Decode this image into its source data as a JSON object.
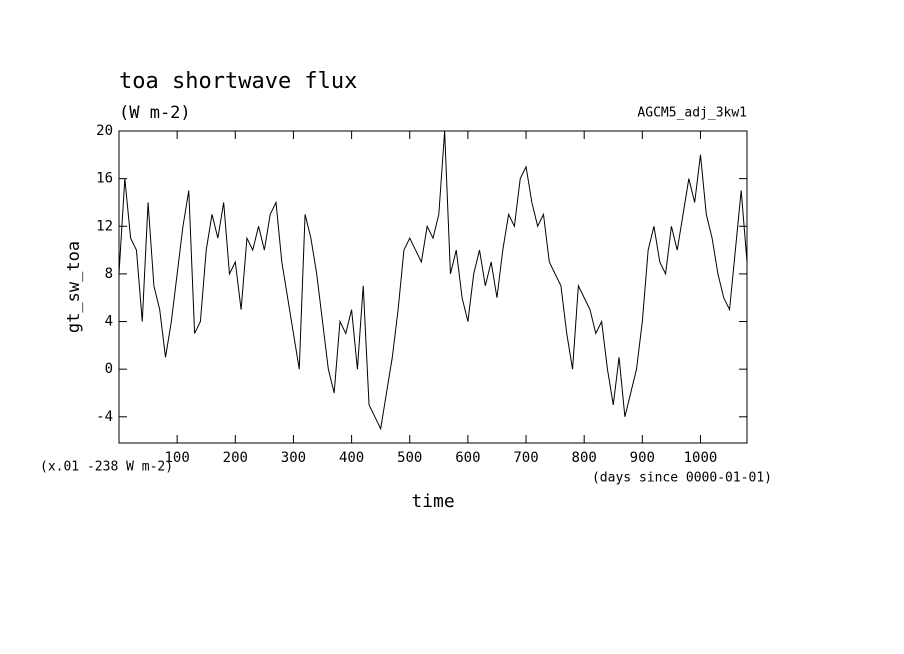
{
  "chart_data": {
    "type": "line",
    "title": "toa shortwave flux",
    "subtitle": "(W m-2)",
    "annotation": "AGCM5_adj_3kw1",
    "ylabel": "gt_sw_toa",
    "yunit_note": "(x.01 -238 W m-2)",
    "xlabel": "time",
    "xunit_note": "(days since 0000-01-01)",
    "xlim": [
      0,
      1080
    ],
    "ylim": [
      -6.2,
      20
    ],
    "xticks": [
      100,
      200,
      300,
      400,
      500,
      600,
      700,
      800,
      900,
      1000
    ],
    "yticks": [
      -4,
      0,
      4,
      8,
      12,
      16,
      20
    ],
    "color": "#000000",
    "x": [
      0,
      10,
      20,
      30,
      40,
      50,
      60,
      70,
      80,
      90,
      100,
      110,
      120,
      130,
      140,
      150,
      160,
      170,
      180,
      190,
      200,
      210,
      220,
      230,
      240,
      250,
      260,
      270,
      280,
      290,
      300,
      310,
      320,
      330,
      340,
      350,
      360,
      370,
      380,
      390,
      400,
      410,
      420,
      430,
      440,
      450,
      460,
      470,
      480,
      490,
      500,
      510,
      520,
      530,
      540,
      550,
      560,
      570,
      580,
      590,
      600,
      610,
      620,
      630,
      640,
      650,
      660,
      670,
      680,
      690,
      700,
      710,
      720,
      730,
      740,
      750,
      760,
      770,
      780,
      790,
      800,
      810,
      820,
      830,
      840,
      850,
      860,
      870,
      880,
      890,
      900,
      910,
      920,
      930,
      940,
      950,
      960,
      970,
      980,
      990,
      1000,
      1010,
      1020,
      1030,
      1040,
      1050,
      1060,
      1070,
      1080
    ],
    "values": [
      8,
      16,
      11,
      10,
      4,
      14,
      7,
      5,
      1,
      4,
      8,
      12,
      15,
      3,
      4,
      10,
      13,
      11,
      14,
      8,
      9,
      5,
      11,
      10,
      12,
      10,
      13,
      14,
      9,
      6,
      3,
      0,
      13,
      11,
      8,
      4,
      0,
      -2,
      4,
      3,
      5,
      0,
      7,
      -3,
      -4,
      -5,
      -2,
      1,
      5,
      10,
      11,
      10,
      9,
      12,
      11,
      13,
      20,
      8,
      10,
      6,
      4,
      8,
      10,
      7,
      9,
      6,
      10,
      13,
      12,
      16,
      17,
      14,
      12,
      13,
      9,
      8,
      7,
      3,
      0,
      7,
      6,
      5,
      3,
      4,
      0,
      -3,
      1,
      -4,
      -2,
      0,
      4,
      10,
      12,
      9,
      8,
      12,
      10,
      13,
      16,
      14,
      18,
      13,
      11,
      8,
      6,
      5,
      10,
      15,
      9
    ]
  }
}
